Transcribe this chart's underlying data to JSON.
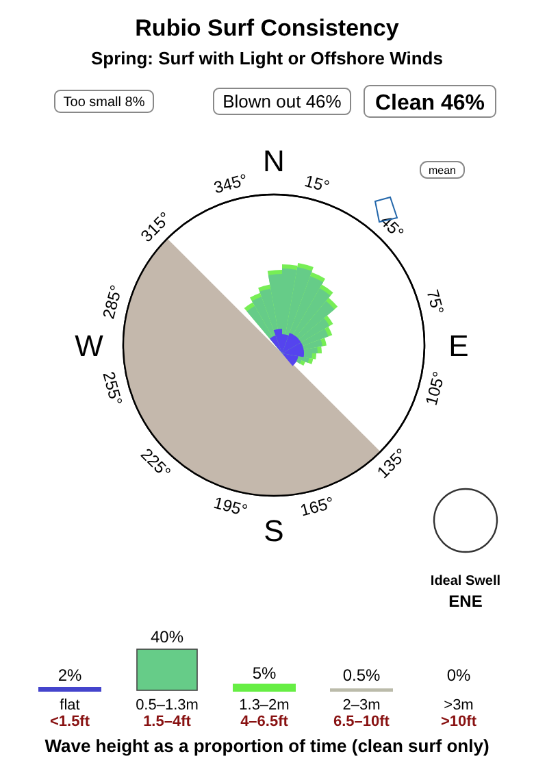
{
  "chart_data": [
    {
      "type": "other",
      "title": "Rubio Surf Consistency",
      "subtitle": "Spring: Surf with Light or Offshore Winds",
      "annotations": [
        "Too small 8%",
        "Blown out 46%",
        "Clean 46%",
        "N",
        "E",
        "S",
        "W",
        "15°",
        "45°",
        "75°",
        "105°",
        "135°",
        "165°",
        "195°",
        "225°",
        "255°",
        "285°",
        "315°",
        "345°",
        "mean",
        "Ideal Swell",
        "ENE"
      ]
    },
    {
      "type": "bar",
      "categories": [
        "flat",
        "0.5–1.3m",
        "1.3–2m",
        "2–3m",
        ">3m"
      ],
      "values": [
        2,
        40,
        5,
        0.5,
        0
      ],
      "value_labels": [
        "2%",
        "40%",
        "5%",
        "0.5%",
        "0%"
      ],
      "colors": [
        "#4444cc",
        "#66cc88",
        "#66ee44",
        "#bbbbaa",
        "#ccaaaa"
      ],
      "xlabel": "Wave height as a proportion of time (clean surf only)",
      "annotations": [
        "<1.5ft",
        "1.5–4ft",
        "4–6.5ft",
        "6.5–10ft",
        ">10ft"
      ]
    }
  ]
}
